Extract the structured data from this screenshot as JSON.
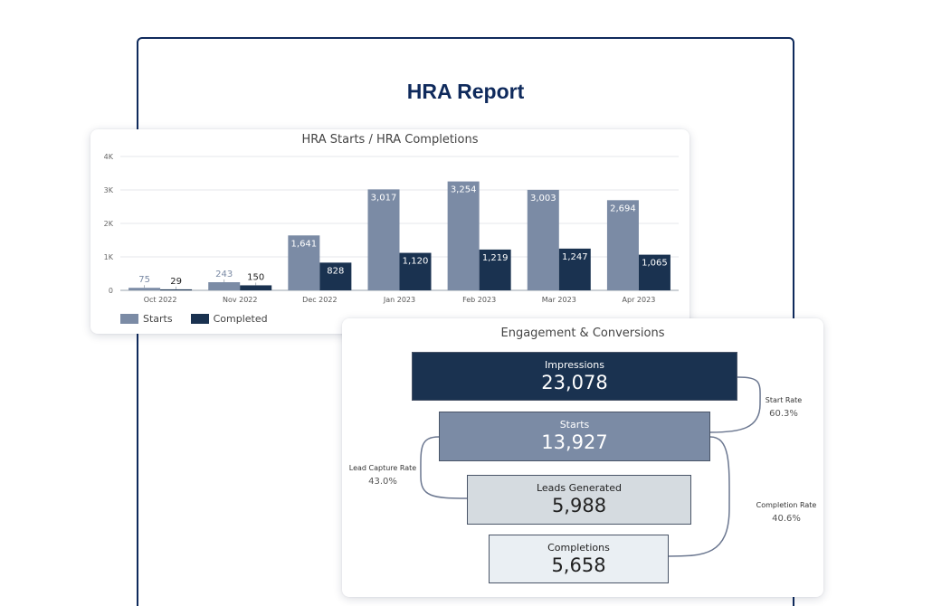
{
  "report": {
    "title": "HRA Report"
  },
  "colors": {
    "starts": "#7b8ba5",
    "completed": "#1a3250",
    "impressions": "#1a3250",
    "starts_stage": "#7b8ba5",
    "leads": "#d5dbe0",
    "completions": "#eaeff3",
    "frame": "#0f2a5c"
  },
  "chart_data": [
    {
      "type": "bar",
      "title": "HRA Starts / HRA Completions",
      "categories": [
        "Oct 2022",
        "Nov 2022",
        "Dec 2022",
        "Jan 2023",
        "Feb 2023",
        "Mar 2023",
        "Apr 2023"
      ],
      "series": [
        {
          "name": "Starts",
          "values": [
            75,
            243,
            1641,
            3017,
            3254,
            3003,
            2694
          ],
          "labels": [
            "75",
            "243",
            "1,641",
            "3,017",
            "3,254",
            "3,003",
            "2,694"
          ]
        },
        {
          "name": "Completed",
          "values": [
            29,
            150,
            828,
            1120,
            1219,
            1247,
            1065
          ],
          "labels": [
            "29",
            "150",
            "828",
            "1,120",
            "1,219",
            "1,247",
            "1,065"
          ]
        }
      ],
      "ylim": [
        0,
        4000
      ],
      "yticks": [
        "0",
        "1K",
        "2K",
        "3K",
        "4K"
      ],
      "grid": true,
      "legend": "bottom-left"
    },
    {
      "type": "funnel",
      "title": "Engagement & Conversions",
      "stages": [
        {
          "label": "Impressions",
          "value": "23,078"
        },
        {
          "label": "Starts",
          "value": "13,927"
        },
        {
          "label": "Leads Generated",
          "value": "5,988"
        },
        {
          "label": "Completions",
          "value": "5,658"
        }
      ],
      "rates": [
        {
          "label": "Start Rate",
          "value": "60.3%"
        },
        {
          "label": "Lead Capture Rate",
          "value": "43.0%"
        },
        {
          "label": "Completion Rate",
          "value": "40.6%"
        }
      ]
    }
  ]
}
